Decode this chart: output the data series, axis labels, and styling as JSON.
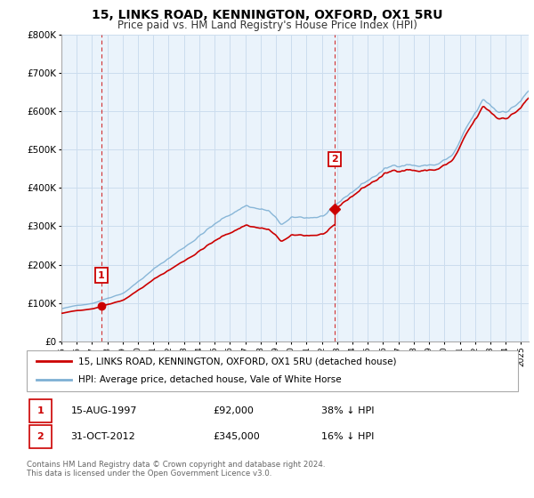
{
  "title": "15, LINKS ROAD, KENNINGTON, OXFORD, OX1 5RU",
  "subtitle": "Price paid vs. HM Land Registry's House Price Index (HPI)",
  "title_fontsize": 10,
  "subtitle_fontsize": 8.5,
  "ylim": [
    0,
    800000
  ],
  "yticks": [
    0,
    100000,
    200000,
    300000,
    400000,
    500000,
    600000,
    700000,
    800000
  ],
  "ytick_labels": [
    "£0",
    "£100K",
    "£200K",
    "£300K",
    "£400K",
    "£500K",
    "£600K",
    "£700K",
    "£800K"
  ],
  "xlim_start": 1995.0,
  "xlim_end": 2025.5,
  "sale1_x": 1997.617,
  "sale1_y": 92000,
  "sale2_x": 2012.833,
  "sale2_y": 345000,
  "sale1_label": "1",
  "sale2_label": "2",
  "sale_color": "#cc0000",
  "hpi_color": "#7eb0d4",
  "chart_bg": "#eaf3fb",
  "legend_line1": "15, LINKS ROAD, KENNINGTON, OXFORD, OX1 5RU (detached house)",
  "legend_line2": "HPI: Average price, detached house, Vale of White Horse",
  "table_row1": [
    "1",
    "15-AUG-1997",
    "£92,000",
    "38% ↓ HPI"
  ],
  "table_row2": [
    "2",
    "31-OCT-2012",
    "£345,000",
    "16% ↓ HPI"
  ],
  "footnote": "Contains HM Land Registry data © Crown copyright and database right 2024.\nThis data is licensed under the Open Government Licence v3.0.",
  "background_color": "#ffffff",
  "grid_color": "#ccddee"
}
